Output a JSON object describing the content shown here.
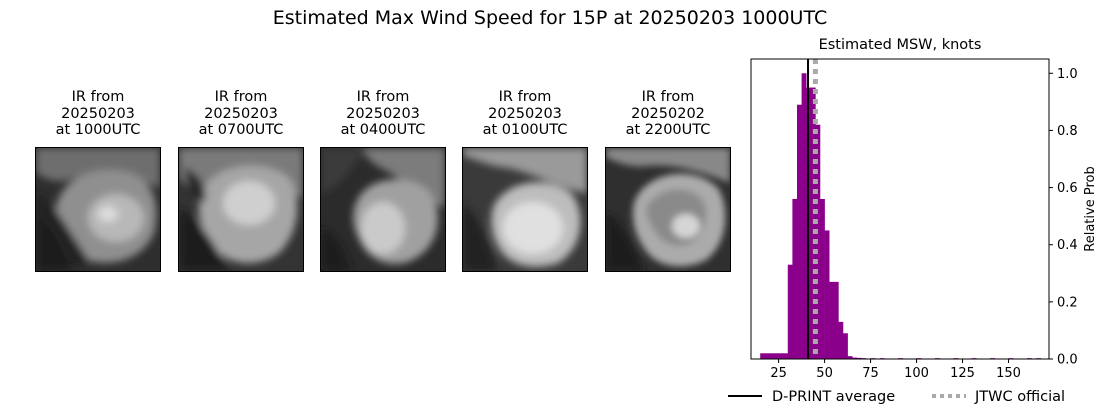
{
  "figure": {
    "title": "Estimated Max Wind Speed for 15P at 20250203 1000UTC"
  },
  "panels": [
    {
      "line1": "IR from",
      "line2": "20250203",
      "line3": "at 1000UTC"
    },
    {
      "line1": "IR from",
      "line2": "20250203",
      "line3": "at 0700UTC"
    },
    {
      "line1": "IR from",
      "line2": "20250203",
      "line3": "at 0400UTC"
    },
    {
      "line1": "IR from",
      "line2": "20250203",
      "line3": "at 0100UTC"
    },
    {
      "line1": "IR from",
      "line2": "20250202",
      "line3": "at 2200UTC"
    }
  ],
  "chart_data": {
    "type": "bar",
    "title": "Estimated MSW, knots",
    "xlabel": "",
    "ylabel": "Relative Prob",
    "xlim": [
      10,
      172
    ],
    "ylim": [
      0,
      1.05
    ],
    "xticks": [
      25,
      50,
      75,
      100,
      125,
      150
    ],
    "yticks": [
      0.0,
      0.2,
      0.4,
      0.6,
      0.8,
      1.0
    ],
    "bin_width": 2.5,
    "bar_color": "#8b008b",
    "bins": [
      {
        "x": 15,
        "y": 0.02
      },
      {
        "x": 17.5,
        "y": 0.02
      },
      {
        "x": 20,
        "y": 0.02
      },
      {
        "x": 22.5,
        "y": 0.02
      },
      {
        "x": 25,
        "y": 0.02
      },
      {
        "x": 27.5,
        "y": 0.02
      },
      {
        "x": 30,
        "y": 0.33
      },
      {
        "x": 32.5,
        "y": 0.56
      },
      {
        "x": 35,
        "y": 0.89
      },
      {
        "x": 37.5,
        "y": 1.0
      },
      {
        "x": 40,
        "y": 0.95
      },
      {
        "x": 42.5,
        "y": 0.95
      },
      {
        "x": 45,
        "y": 0.82
      },
      {
        "x": 47.5,
        "y": 0.56
      },
      {
        "x": 50,
        "y": 0.45
      },
      {
        "x": 52.5,
        "y": 0.27
      },
      {
        "x": 55,
        "y": 0.27
      },
      {
        "x": 57.5,
        "y": 0.13
      },
      {
        "x": 60,
        "y": 0.09
      },
      {
        "x": 62.5,
        "y": 0.01
      },
      {
        "x": 65,
        "y": 0.005
      },
      {
        "x": 67.5,
        "y": 0.004
      },
      {
        "x": 70,
        "y": 0.003
      },
      {
        "x": 75,
        "y": 0.003
      },
      {
        "x": 80,
        "y": 0.003
      },
      {
        "x": 90,
        "y": 0.003
      },
      {
        "x": 100,
        "y": 0.003
      },
      {
        "x": 110,
        "y": 0.003
      },
      {
        "x": 120,
        "y": 0.003
      },
      {
        "x": 130,
        "y": 0.003
      },
      {
        "x": 140,
        "y": 0.003
      },
      {
        "x": 150,
        "y": 0.003
      },
      {
        "x": 160,
        "y": 0.003
      },
      {
        "x": 165,
        "y": 0.003
      }
    ],
    "dprint_average": 41,
    "jtwc_official": 45,
    "legend": [
      {
        "label": "D-PRINT average",
        "style": "solid",
        "color": "#000000"
      },
      {
        "label": "JTWC official",
        "style": "dotted",
        "color": "#aaaaaa"
      }
    ],
    "legend_placement": "bottom"
  }
}
